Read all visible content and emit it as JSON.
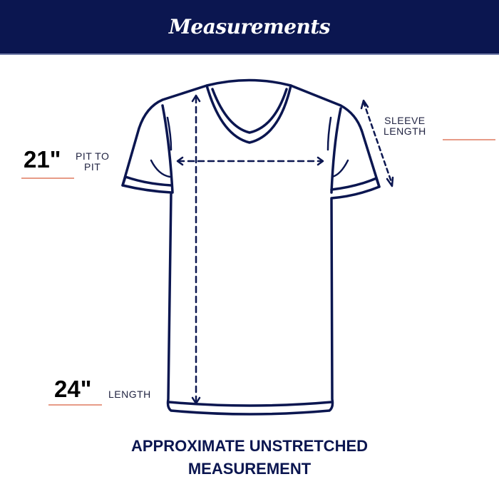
{
  "header": {
    "title": "Measurements"
  },
  "measurements": {
    "pit_to_pit": {
      "label_line1": "PIT TO",
      "label_line2": "PIT",
      "value": "21\""
    },
    "sleeve_length": {
      "label_line1": "SLEEVE",
      "label_line2": "LENGTH",
      "value": ""
    },
    "length": {
      "label": "LENGTH",
      "value": "24\""
    }
  },
  "footer": {
    "line1": "APPROXIMATE UNSTRETCHED",
    "line2": "MEASUREMENT"
  },
  "colors": {
    "navy": "#0b1650",
    "accent_line": "#e79b87"
  }
}
